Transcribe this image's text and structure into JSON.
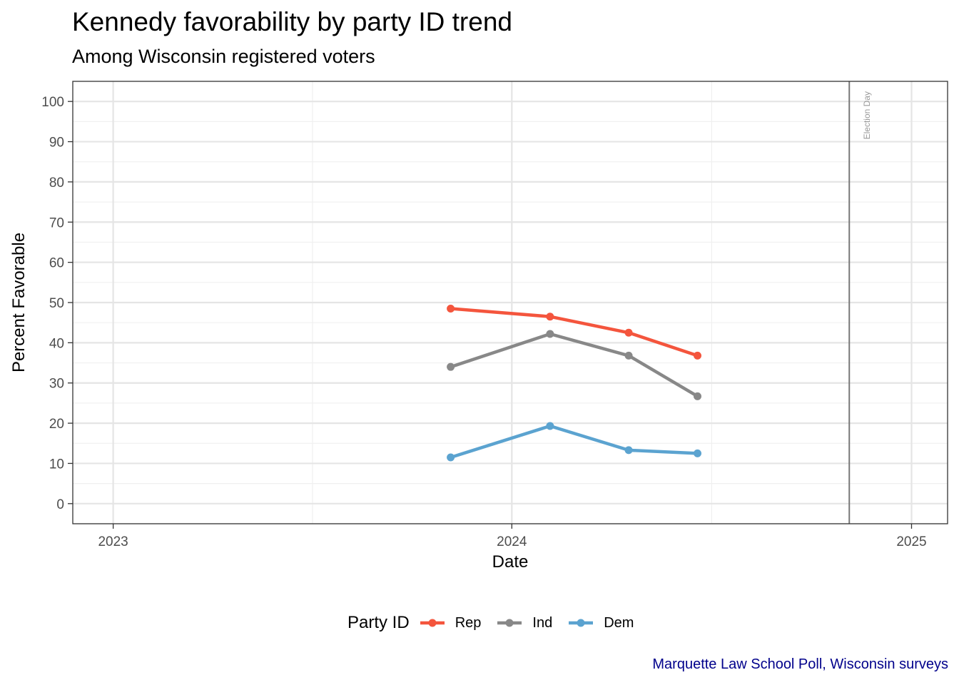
{
  "title": "Kennedy favorability by party ID trend",
  "subtitle": "Among Wisconsin registered voters",
  "caption": "Marquette Law School Poll, Wisconsin surveys",
  "chart_data": {
    "type": "line",
    "xlabel": "Date",
    "ylabel": "Percent Favorable",
    "x_type": "date",
    "xlim": [
      "2022-11-25",
      "2025-02-03"
    ],
    "ylim": [
      -5,
      105
    ],
    "x_ticks": [
      "2023-01-01",
      "2024-01-01",
      "2025-01-01"
    ],
    "x_tick_labels": [
      "2023",
      "2024",
      "2025"
    ],
    "y_ticks": [
      0,
      10,
      20,
      30,
      40,
      50,
      60,
      70,
      80,
      90,
      100
    ],
    "grid": true,
    "legend_title": "Party ID",
    "legend_position": "bottom",
    "x": [
      "2023-11-06",
      "2024-02-05",
      "2024-04-17",
      "2024-06-19"
    ],
    "series": [
      {
        "name": "Rep",
        "color": "#f4553d",
        "values": [
          48.5,
          46.5,
          42.5,
          36.8
        ]
      },
      {
        "name": "Ind",
        "color": "#888888",
        "values": [
          34.0,
          42.2,
          36.8,
          26.7
        ]
      },
      {
        "name": "Dem",
        "color": "#5ba3d0",
        "values": [
          11.5,
          19.3,
          13.3,
          12.5
        ]
      }
    ],
    "vline": {
      "x": "2024-11-05",
      "label": "Election Day",
      "color": "#777777"
    }
  }
}
